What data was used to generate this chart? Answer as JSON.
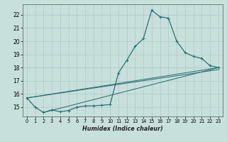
{
  "title": "",
  "xlabel": "Humidex (Indice chaleur)",
  "xlim": [
    -0.5,
    23.5
  ],
  "ylim": [
    14.3,
    22.8
  ],
  "bg_color": "#c8e0dc",
  "grid_color": "#b0cccc",
  "line_color": "#2a7070",
  "xticks": [
    0,
    1,
    2,
    3,
    4,
    5,
    6,
    7,
    8,
    9,
    10,
    11,
    12,
    13,
    14,
    15,
    16,
    17,
    18,
    19,
    20,
    21,
    22,
    23
  ],
  "yticks": [
    15,
    16,
    17,
    18,
    19,
    20,
    21,
    22
  ],
  "main_x": [
    0,
    1,
    2,
    3,
    4,
    5,
    6,
    7,
    8,
    9,
    10,
    11,
    12,
    13,
    14,
    15,
    16,
    17,
    18,
    19,
    20,
    21,
    22,
    23
  ],
  "main_y": [
    15.7,
    15.0,
    14.6,
    14.8,
    14.65,
    14.75,
    15.0,
    15.1,
    15.1,
    15.15,
    15.2,
    17.6,
    18.55,
    19.6,
    20.2,
    22.35,
    21.85,
    21.75,
    20.0,
    19.15,
    18.85,
    18.7,
    18.15,
    18.0
  ],
  "straight_lines": [
    {
      "x": [
        0,
        23
      ],
      "y": [
        15.7,
        18.0
      ]
    },
    {
      "x": [
        2,
        23
      ],
      "y": [
        14.6,
        18.0
      ]
    },
    {
      "x": [
        0,
        23
      ],
      "y": [
        15.7,
        17.85
      ]
    }
  ]
}
